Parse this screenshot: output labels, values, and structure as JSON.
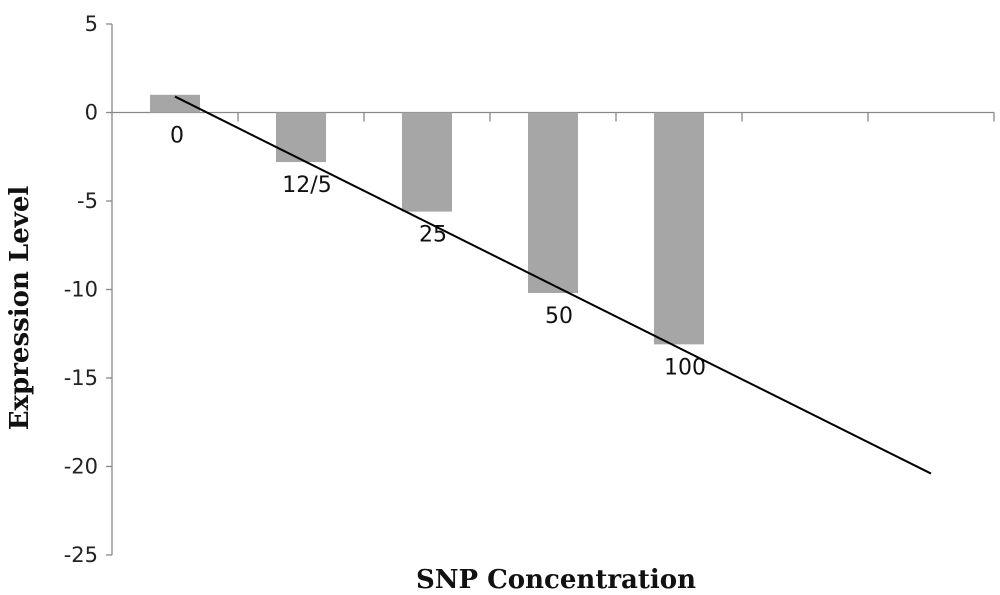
{
  "chart_data": {
    "type": "bar",
    "title": "",
    "xlabel": "SNP Concentration",
    "ylabel": "Expression Level",
    "categories": [
      "0",
      "12/5",
      "25",
      "50",
      "100"
    ],
    "values": [
      1,
      -2.8,
      -5.6,
      -10.2,
      -13.1
    ],
    "ylim": [
      -25,
      5
    ],
    "yticks": [
      5,
      0,
      -5,
      -10,
      -15,
      -20,
      -25
    ],
    "bar_color": "#a6a6a6",
    "trendline": {
      "x_start": 0,
      "y_start": 0.9,
      "x_end": 6,
      "y_end": -20.4,
      "color": "#000000"
    },
    "grid": false,
    "legend": "none"
  }
}
